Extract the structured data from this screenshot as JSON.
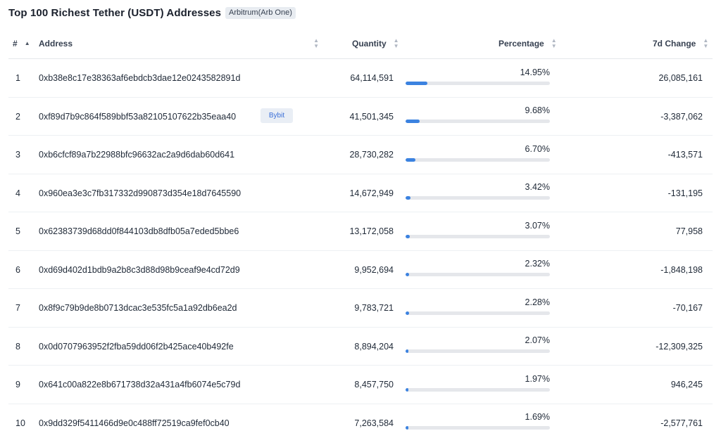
{
  "page": {
    "title": "Top 100 Richest Tether (USDT) Addresses",
    "chain_badge": "Arbitrum(Arb One)"
  },
  "table": {
    "headers": {
      "rank": "#",
      "address": "Address",
      "quantity": "Quantity",
      "percentage": "Percentage",
      "change": "7d Change"
    },
    "rows": [
      {
        "rank": "1",
        "address": "0xb38e8c17e38363af6ebdcb3dae12e0243582891d",
        "tag": "",
        "quantity": "64,114,591",
        "percentage": "14.95%",
        "pct_value": 14.95,
        "change": "26,085,161"
      },
      {
        "rank": "2",
        "address": "0xf89d7b9c864f589bbf53a82105107622b35eaa40",
        "tag": "Bybit",
        "quantity": "41,501,345",
        "percentage": "9.68%",
        "pct_value": 9.68,
        "change": "-3,387,062"
      },
      {
        "rank": "3",
        "address": "0xb6cfcf89a7b22988bfc96632ac2a9d6dab60d641",
        "tag": "",
        "quantity": "28,730,282",
        "percentage": "6.70%",
        "pct_value": 6.7,
        "change": "-413,571"
      },
      {
        "rank": "4",
        "address": "0x960ea3e3c7fb317332d990873d354e18d7645590",
        "tag": "",
        "quantity": "14,672,949",
        "percentage": "3.42%",
        "pct_value": 3.42,
        "change": "-131,195"
      },
      {
        "rank": "5",
        "address": "0x62383739d68dd0f844103db8dfb05a7eded5bbe6",
        "tag": "",
        "quantity": "13,172,058",
        "percentage": "3.07%",
        "pct_value": 3.07,
        "change": "77,958"
      },
      {
        "rank": "6",
        "address": "0xd69d402d1bdb9a2b8c3d88d98b9ceaf9e4cd72d9",
        "tag": "",
        "quantity": "9,952,694",
        "percentage": "2.32%",
        "pct_value": 2.32,
        "change": "-1,848,198"
      },
      {
        "rank": "7",
        "address": "0x8f9c79b9de8b0713dcac3e535fc5a1a92db6ea2d",
        "tag": "",
        "quantity": "9,783,721",
        "percentage": "2.28%",
        "pct_value": 2.28,
        "change": "-70,167"
      },
      {
        "rank": "8",
        "address": "0x0d0707963952f2fba59dd06f2b425ace40b492fe",
        "tag": "",
        "quantity": "8,894,204",
        "percentage": "2.07%",
        "pct_value": 2.07,
        "change": "-12,309,325"
      },
      {
        "rank": "9",
        "address": "0x641c00a822e8b671738d32a431a4fb6074e5c79d",
        "tag": "",
        "quantity": "8,457,750",
        "percentage": "1.97%",
        "pct_value": 1.97,
        "change": "946,245"
      },
      {
        "rank": "10",
        "address": "0x9dd329f5411466d9e0c488ff72519ca9fef0cb40",
        "tag": "",
        "quantity": "7,263,584",
        "percentage": "1.69%",
        "pct_value": 1.69,
        "change": "-2,577,761"
      }
    ]
  },
  "colors": {
    "bar_fill": "#3b82e0",
    "bar_track": "#e5e7eb",
    "tag_text": "#3b6fd8"
  }
}
